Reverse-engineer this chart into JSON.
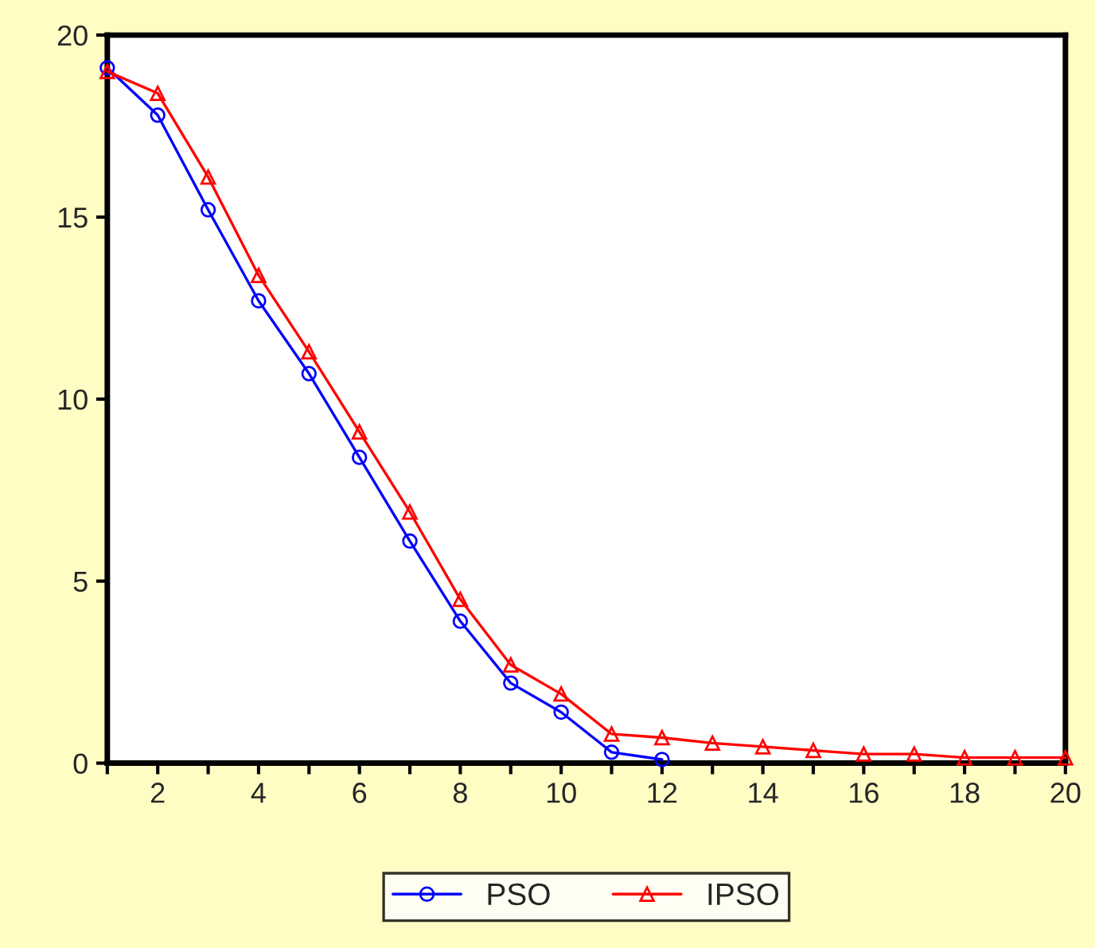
{
  "chart_data": {
    "type": "line",
    "x": [
      1,
      2,
      3,
      4,
      5,
      6,
      7,
      8,
      9,
      10,
      11,
      12,
      13,
      14,
      15,
      16,
      17,
      18,
      19,
      20
    ],
    "series": [
      {
        "name": "PSO",
        "color": "#0000ff",
        "marker": "circle",
        "x": [
          1,
          2,
          3,
          4,
          5,
          6,
          7,
          8,
          9,
          10,
          11,
          12
        ],
        "values": [
          19.1,
          17.8,
          15.2,
          12.7,
          10.7,
          8.4,
          6.1,
          3.9,
          2.2,
          1.4,
          0.3,
          0.1
        ]
      },
      {
        "name": "IPSO",
        "color": "#ff0000",
        "marker": "triangle",
        "values": [
          19.0,
          18.4,
          16.1,
          13.4,
          11.3,
          9.1,
          6.9,
          4.5,
          2.7,
          1.9,
          0.8,
          0.7,
          0.55,
          0.45,
          0.35,
          0.25,
          0.25,
          0.15,
          0.15,
          0.15
        ]
      }
    ],
    "xlim": [
      1,
      20
    ],
    "xticks": [
      {
        "value": 1,
        "label": null
      },
      2,
      {
        "value": 3,
        "label": null
      },
      4,
      {
        "value": 5,
        "label": null
      },
      6,
      {
        "value": 7,
        "label": null
      },
      8,
      {
        "value": 9,
        "label": null
      },
      10,
      {
        "value": 11,
        "label": null
      },
      12,
      {
        "value": 13,
        "label": null
      },
      14,
      {
        "value": 15,
        "label": null
      },
      16,
      {
        "value": 17,
        "label": null
      },
      18,
      {
        "value": 19,
        "label": null
      },
      20
    ],
    "ylim": [
      0,
      20
    ],
    "yticks": [
      0,
      5,
      10,
      15,
      20
    ],
    "grid": false,
    "legend": "bottom",
    "line_style": "solid"
  }
}
